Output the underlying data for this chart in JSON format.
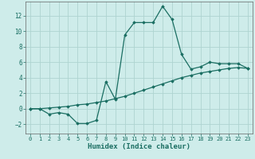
{
  "xlabel": "Humidex (Indice chaleur)",
  "ylabel": "",
  "background_color": "#ceecea",
  "grid_color": "#aed4d0",
  "line_color": "#1a6e62",
  "xlim": [
    -0.5,
    23.5
  ],
  "ylim": [
    -3.2,
    13.8
  ],
  "yticks": [
    -2,
    0,
    2,
    4,
    6,
    8,
    10,
    12
  ],
  "xticks": [
    0,
    1,
    2,
    3,
    4,
    5,
    6,
    7,
    8,
    9,
    10,
    11,
    12,
    13,
    14,
    15,
    16,
    17,
    18,
    19,
    20,
    21,
    22,
    23
  ],
  "line1_x": [
    0,
    1,
    2,
    3,
    4,
    5,
    6,
    7,
    8,
    9,
    10,
    11,
    12,
    13,
    14,
    15,
    16,
    17,
    18,
    19,
    20,
    21,
    22,
    23
  ],
  "line1_y": [
    0.0,
    0.0,
    -0.7,
    -0.5,
    -0.7,
    -1.9,
    -1.9,
    -1.5,
    3.5,
    1.2,
    9.5,
    11.1,
    11.1,
    11.1,
    13.2,
    11.5,
    7.0,
    5.1,
    5.4,
    6.0,
    5.8,
    5.8,
    5.8,
    5.2
  ],
  "line2_x": [
    0,
    1,
    2,
    3,
    4,
    5,
    6,
    7,
    8,
    9,
    10,
    11,
    12,
    13,
    14,
    15,
    16,
    17,
    18,
    19,
    20,
    21,
    22,
    23
  ],
  "line2_y": [
    0.0,
    0.0,
    0.1,
    0.2,
    0.3,
    0.5,
    0.6,
    0.8,
    1.0,
    1.3,
    1.6,
    2.0,
    2.4,
    2.8,
    3.2,
    3.6,
    4.0,
    4.3,
    4.6,
    4.8,
    5.0,
    5.2,
    5.3,
    5.2
  ],
  "marker": "D",
  "markersize": 1.8,
  "linewidth": 0.9,
  "tick_fontsize": 5.0,
  "xlabel_fontsize": 6.5
}
